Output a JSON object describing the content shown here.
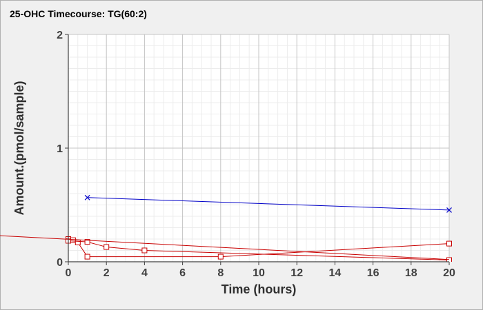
{
  "chart_data": {
    "type": "line",
    "title": "25-OHC Timecourse: TG(60:2)",
    "xlabel": "Time (hours)",
    "ylabel": "Amount.(pmol/sample)",
    "xlim": [
      0,
      20
    ],
    "ylim": [
      0,
      2
    ],
    "x_ticks": [
      "0",
      "2",
      "4",
      "6",
      "8",
      "10",
      "12",
      "14",
      "16",
      "18",
      "20"
    ],
    "y_ticks": [
      "0",
      "1",
      "2"
    ],
    "grid": true,
    "legend": "none",
    "series": [
      {
        "color": "#0000c8",
        "marker": "x",
        "points": [
          [
            1,
            0.565
          ],
          [
            20,
            0.455
          ]
        ]
      },
      {
        "color": "#c80000",
        "marker": "square",
        "points": [
          [
            0,
            0.2
          ],
          [
            0.25,
            0.19
          ],
          [
            0.5,
            0.17
          ],
          [
            1,
            0.045
          ],
          [
            8,
            0.045
          ],
          [
            20,
            0.16
          ]
        ]
      },
      {
        "color": "#c80000",
        "marker": "square",
        "points": [
          [
            0,
            0.185
          ],
          [
            1,
            0.175
          ],
          [
            2,
            0.13
          ],
          [
            4,
            0.1
          ],
          [
            20,
            0.015
          ]
        ]
      },
      {
        "color": "#c80000",
        "marker": "none",
        "points": [
          [
            -3.6,
            0.23
          ],
          [
            20,
            0.02
          ]
        ]
      }
    ]
  }
}
